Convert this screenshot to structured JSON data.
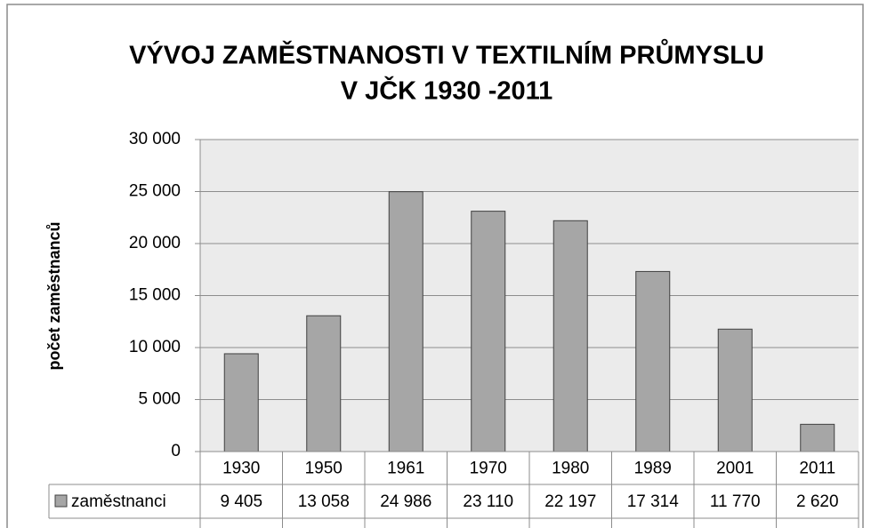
{
  "chart_data": {
    "type": "bar",
    "title": [
      "VÝVOJ ZAMĚSTNANOSTI V TEXTILNÍM PRŮMYSLU",
      "V JČK 1930 -2011"
    ],
    "y_label": "počet zaměstnanců",
    "categories": [
      "1930",
      "1950",
      "1961",
      "1970",
      "1980",
      "1989",
      "2001",
      "2011"
    ],
    "series": [
      {
        "name": "zaměstnanci",
        "color": "#a6a6a6",
        "values": [
          9405,
          13058,
          24986,
          23110,
          22197,
          17314,
          11770,
          2620
        ],
        "value_labels": [
          "9 405",
          "13 058",
          "24 986",
          "23 110",
          "22 197",
          "17 314",
          "11 770",
          "2 620"
        ]
      }
    ],
    "ylim": [
      0,
      30000
    ],
    "yticks": [
      {
        "value": 0,
        "label": "0"
      },
      {
        "value": 5000,
        "label": "5 000"
      },
      {
        "value": 10000,
        "label": "10 000"
      },
      {
        "value": 15000,
        "label": "15 000"
      },
      {
        "value": 20000,
        "label": "20 000"
      },
      {
        "value": 25000,
        "label": "25 000"
      },
      {
        "value": 30000,
        "label": "30 000"
      }
    ],
    "grid": true
  }
}
